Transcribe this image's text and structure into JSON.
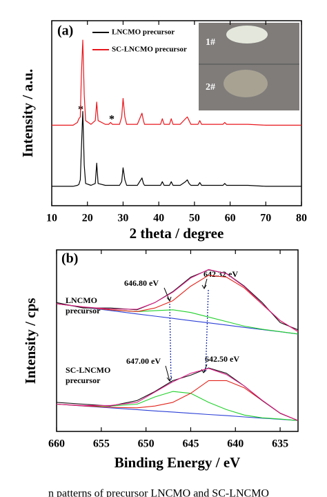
{
  "caption": "n patterns of precursor LNCMO and SC-LNCMO",
  "chart_data": [
    {
      "type": "line",
      "label": "(a)",
      "xlabel": "2 theta / degree",
      "ylabel": "Intensity / a.u.",
      "xlim": [
        10,
        80
      ],
      "xticks": [
        10,
        20,
        30,
        40,
        50,
        60,
        70,
        80
      ],
      "ylim": [
        0,
        100
      ],
      "annotations": [
        "*",
        "*"
      ],
      "inset_labels": [
        "1#",
        "2#"
      ],
      "legend": "upper left",
      "x": [
        10,
        16,
        17.2,
        17.6,
        18,
        18.3,
        18.7,
        19.1,
        19.5,
        21,
        22.2,
        22.6,
        23,
        25,
        26,
        26.5,
        27,
        29,
        29.6,
        30,
        30.5,
        31,
        34,
        35.3,
        35.7,
        36,
        38,
        40.5,
        41,
        41.5,
        43,
        43.5,
        44,
        46,
        47.5,
        48,
        48.5,
        49,
        51,
        51.5,
        52,
        55,
        58,
        58.5,
        59,
        62,
        65,
        70,
        80
      ],
      "series": [
        {
          "name": "LNCMO precursor",
          "color": "#000000",
          "values": [
            10.5,
            10.5,
            11,
            11.5,
            14,
            30,
            51,
            22,
            12,
            11,
            12,
            23,
            12,
            11,
            11,
            11,
            11,
            11,
            13,
            20.5,
            14,
            11,
            11,
            15,
            12,
            11,
            11,
            11,
            13,
            11,
            11,
            13,
            11,
            11,
            13,
            14,
            12,
            11,
            11,
            12.5,
            11,
            11,
            11,
            12,
            11,
            11,
            11,
            10.5,
            10.5
          ]
        },
        {
          "name": "SC-LNCMO precursor",
          "color": "#e8151b",
          "values": [
            43.5,
            43.5,
            45,
            47,
            48,
            70,
            89.5,
            60,
            46,
            44,
            46,
            56,
            46,
            44,
            44,
            45,
            44,
            44,
            48,
            58,
            48,
            44,
            44,
            50,
            46,
            44,
            44,
            44,
            47,
            44,
            44,
            47,
            44,
            44,
            47,
            48,
            46,
            44,
            44,
            46,
            44,
            44,
            44,
            45,
            44,
            44,
            44,
            43.5,
            43.5
          ]
        }
      ]
    },
    {
      "type": "line",
      "label": "(b)",
      "xlabel": "Binding Energy / eV",
      "ylabel": "Intensity / cps",
      "xlim": [
        660,
        633
      ],
      "xticks": [
        660,
        655,
        650,
        645,
        640,
        635
      ],
      "ylim": [
        0,
        100
      ],
      "annotations": [
        "646.80 eV",
        "642.32 eV",
        "647.00 eV",
        "642.50 eV"
      ],
      "sample_labels": [
        [
          "LNCMO",
          "precursor"
        ],
        [
          "SC-LNCMO",
          "precursor"
        ]
      ],
      "x": [
        660,
        657,
        654,
        651,
        649,
        647,
        645,
        643,
        641,
        639,
        637,
        635,
        633
      ],
      "series": [
        {
          "color": "#2a3fd6",
          "values": [
            70.3,
            68.4,
            66.6,
            64.7,
            63.5,
            62.3,
            61.0,
            59.8,
            58.6,
            57.3,
            56.1,
            54.9,
            53.6
          ]
        },
        {
          "color": "#1fd12a",
          "values": [
            70.3,
            68.5,
            67,
            66,
            66.5,
            67,
            65.5,
            63,
            60.5,
            58,
            56.3,
            55,
            53.7
          ]
        },
        {
          "color": "#e2231a",
          "values": [
            70.3,
            68.5,
            67,
            66,
            68,
            72,
            80,
            86,
            85,
            79,
            70,
            61,
            55
          ]
        },
        {
          "color": "#111111",
          "values": [
            71,
            68,
            68,
            67,
            71,
            77,
            85,
            89,
            87,
            80,
            71,
            60,
            56
          ]
        },
        {
          "color": "#e0218a",
          "values": [
            70.3,
            68.6,
            67.4,
            67.3,
            71,
            76.7,
            84.5,
            89.2,
            86.9,
            79.7,
            70.2,
            61.1,
            55.1
          ]
        },
        {
          "color": "#2a3fd6",
          "values": [
            15,
            14,
            13,
            12,
            11.3,
            10.7,
            10,
            9.3,
            8.7,
            8,
            7.3,
            6.7,
            6
          ]
        },
        {
          "color": "#1fd12a",
          "values": [
            15,
            14.2,
            14,
            15,
            19,
            22,
            21,
            16,
            12,
            9,
            7.5,
            6.8,
            6
          ]
        },
        {
          "color": "#e2231a",
          "values": [
            15,
            14.1,
            13.3,
            13,
            14,
            16,
            21,
            28,
            28,
            24,
            17,
            10,
            6
          ]
        },
        {
          "color": "#111111",
          "values": [
            16,
            15,
            14,
            17,
            22,
            28,
            31,
            35,
            32,
            25,
            17,
            10,
            6
          ]
        },
        {
          "color": "#e0218a",
          "values": [
            15,
            14.3,
            14.3,
            16,
            21.7,
            27.3,
            32,
            34.7,
            31.3,
            25,
            17.2,
            10.1,
            6
          ]
        }
      ]
    }
  ]
}
